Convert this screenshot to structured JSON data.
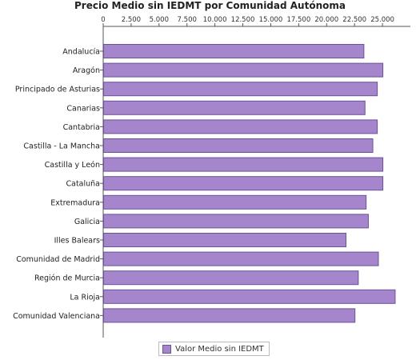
{
  "chart_data": {
    "type": "bar",
    "orientation": "horizontal",
    "title": "Precio Medio sin IEDMT por Comunidad Autónoma",
    "xlabel": "",
    "ylabel": "",
    "xlim": [
      0,
      27500
    ],
    "x_ticks": [
      "0",
      "2.500",
      "5.000",
      "7.500",
      "10.000",
      "12.500",
      "15.000",
      "17.500",
      "20.000",
      "22.500",
      "25.000"
    ],
    "x_tick_values": [
      0,
      2500,
      5000,
      7500,
      10000,
      12500,
      15000,
      17500,
      20000,
      22500,
      25000
    ],
    "grid": false,
    "legend_position": "bottom",
    "bar_color": "#a585cc",
    "bar_edge_color": "#6a5394",
    "categories": [
      "Andalucía",
      "Aragón",
      "Principado de Asturias",
      "Canarias",
      "Cantabria",
      "Castilla - La Mancha",
      "Castilla y León",
      "Cataluña",
      "Extremadura",
      "Galicia",
      "Illes Balears",
      "Comunidad de Madrid",
      "Región de Murcia",
      "La Rioja",
      "Comunidad Valenciana"
    ],
    "series": [
      {
        "name": "Valor Medio sin IEDMT",
        "values": [
          23300,
          25000,
          24500,
          23400,
          24500,
          24100,
          25000,
          25000,
          23500,
          23700,
          21700,
          24600,
          22800,
          26100,
          22500
        ]
      }
    ]
  }
}
